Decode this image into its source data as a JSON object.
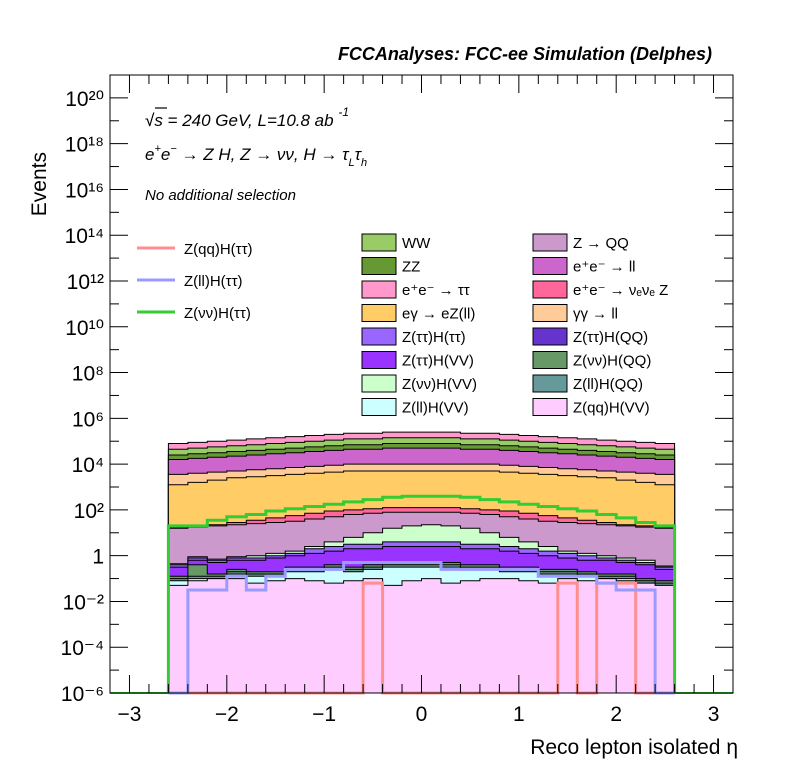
{
  "header": {
    "title": "FCCAnalyses: FCC-ee Simulation (Delphes)"
  },
  "annotations": {
    "energy": "√s = 240 GeV, L=10.8 ab",
    "energy_exp": "-1",
    "process": "e⁺e⁻ → Z H, Z → νν, H → τ_L τ_h",
    "selection": "No additional selection"
  },
  "legend_lines": [
    {
      "label": "Z(qq)H(ττ)",
      "color": "#ff8f8f"
    },
    {
      "label": "Z(ll)H(ττ)",
      "color": "#9a9aff"
    },
    {
      "label": "Z(νν)H(ττ)",
      "color": "#33cc33"
    }
  ],
  "legend_fills": [
    {
      "label": "WW",
      "color": "#99cc66"
    },
    {
      "label": "Z → QQ",
      "color": "#cc99cc"
    },
    {
      "label": "ZZ",
      "color": "#669933"
    },
    {
      "label": "e⁺e⁻ → ll",
      "color": "#cc66cc"
    },
    {
      "label": "e⁺e⁻ → ττ",
      "color": "#ff99cc"
    },
    {
      "label": "e⁺e⁻ → νₑνₑ Z",
      "color": "#ff6699"
    },
    {
      "label": "eγ → eZ(ll)",
      "color": "#ffcc66"
    },
    {
      "label": "γγ → ll",
      "color": "#ffcc99"
    },
    {
      "label": "Z(ττ)H(ττ)",
      "color": "#9966ff"
    },
    {
      "label": "Z(ττ)H(QQ)",
      "color": "#6633cc"
    },
    {
      "label": "Z(ττ)H(VV)",
      "color": "#9933ff"
    },
    {
      "label": "Z(νν)H(QQ)",
      "color": "#669966"
    },
    {
      "label": "Z(νν)H(VV)",
      "color": "#ccffcc"
    },
    {
      "label": "Z(ll)H(QQ)",
      "color": "#669999"
    },
    {
      "label": "Z(ll)H(VV)",
      "color": "#ccffff"
    },
    {
      "label": "Z(qq)H(VV)",
      "color": "#ffccff"
    }
  ],
  "chart_data": {
    "type": "area",
    "title": "FCCAnalyses: FCC-ee Simulation (Delphes)",
    "xlabel": "Reco lepton isolated η",
    "ylabel": "Events",
    "xlim": [
      -3.2,
      3.2
    ],
    "ylim_log10": [
      -6,
      21
    ],
    "yscale": "log",
    "xticks": [
      -3,
      -2,
      -1,
      0,
      1,
      2,
      3
    ],
    "xtick_labels": [
      "−3",
      "−2",
      "−1",
      "0",
      "1",
      "2",
      "3"
    ],
    "yticks_log10": [
      -6,
      -4,
      -2,
      0,
      2,
      4,
      6,
      8,
      10,
      12,
      14,
      16,
      18,
      20
    ],
    "ytick_labels": [
      "10⁻⁶",
      "10⁻⁴",
      "10⁻²",
      "1",
      "10²",
      "10⁴",
      "10⁶",
      "10⁸",
      "10¹⁰",
      "10¹²",
      "10¹⁴",
      "10¹⁶",
      "10¹⁸",
      "10²⁰"
    ],
    "bin_edges": [
      -2.6,
      -2.4,
      -2.2,
      -2.0,
      -1.8,
      -1.6,
      -1.4,
      -1.2,
      -1.0,
      -0.8,
      -0.6,
      -0.4,
      -0.2,
      0.0,
      0.2,
      0.4,
      0.6,
      0.8,
      1.0,
      1.2,
      1.4,
      1.6,
      1.8,
      2.0,
      2.2,
      2.4,
      2.6
    ],
    "stack_log10_edges": [
      {
        "name": "Z(qq)H(VV)",
        "color": "#ffccff",
        "y": [
          -1.3,
          -1.1,
          -1.0,
          -1.0,
          -1.2,
          -1.1,
          -1.0,
          -1.1,
          -1.2,
          -1.1,
          -1.0,
          -1.3,
          -1.1,
          -1.0,
          -1.2,
          -1.1,
          -1.0,
          -1.0,
          -1.1,
          -1.2,
          -1.0,
          -1.1,
          -1.0,
          -1.1,
          -1.2,
          -1.3
        ]
      },
      {
        "name": "Z(ll)H(VV)",
        "color": "#ccffff",
        "y": [
          -1.1,
          -1.0,
          -1.0,
          -0.8,
          -0.9,
          -0.9,
          -0.7,
          -0.7,
          -0.6,
          -0.7,
          -0.6,
          -0.5,
          -0.5,
          -0.5,
          -0.5,
          -0.6,
          -0.6,
          -0.7,
          -0.7,
          -0.8,
          -0.8,
          -0.9,
          -1.0,
          -1.0,
          -1.2,
          -1.3
        ]
      },
      {
        "name": "Z(ll)H(QQ)",
        "color": "#669999",
        "y": [
          -1.0,
          -0.9,
          -0.9,
          -0.7,
          -0.8,
          -0.8,
          -0.6,
          -0.6,
          -0.5,
          -0.6,
          -0.5,
          -0.4,
          -0.4,
          -0.4,
          -0.4,
          -0.5,
          -0.5,
          -0.6,
          -0.6,
          -0.7,
          -0.7,
          -0.8,
          -0.9,
          -0.9,
          -1.1,
          -1.2
        ]
      },
      {
        "name": "Z(νν)H(QQ)",
        "color": "#669966",
        "y": [
          -0.9,
          -0.4,
          -0.8,
          -0.6,
          -0.7,
          -0.7,
          -0.5,
          -0.5,
          -0.4,
          -0.5,
          -0.4,
          -0.3,
          -0.3,
          -0.3,
          -0.3,
          -0.4,
          -0.4,
          -0.5,
          -0.5,
          -0.6,
          -0.6,
          -0.7,
          -0.8,
          -0.8,
          -1.0,
          -1.1
        ]
      },
      {
        "name": "Z(ττ)H(VV)",
        "color": "#9933ff",
        "y": [
          -0.5,
          -0.2,
          -0.3,
          -0.2,
          -0.2,
          -0.1,
          0.0,
          0.1,
          0.2,
          0.3,
          0.3,
          0.4,
          0.4,
          0.4,
          0.4,
          0.3,
          0.3,
          0.2,
          0.1,
          0.0,
          -0.1,
          -0.2,
          -0.2,
          -0.3,
          -0.4,
          -0.6
        ]
      },
      {
        "name": "Z(ττ)H(ττ)",
        "color": "#9966ff",
        "y": [
          -0.4,
          -0.1,
          -0.2,
          -0.1,
          -0.1,
          0.0,
          0.1,
          0.3,
          0.4,
          0.5,
          0.5,
          0.6,
          0.6,
          0.6,
          0.6,
          0.5,
          0.5,
          0.4,
          0.3,
          0.2,
          0.1,
          0.0,
          -0.1,
          -0.2,
          -0.3,
          -0.5
        ]
      },
      {
        "name": "Z(νν)H(VV)",
        "color": "#ccffcc",
        "y": [
          -0.35,
          -0.05,
          -0.15,
          -0.05,
          0.0,
          0.1,
          0.2,
          0.4,
          0.6,
          0.8,
          1.0,
          1.2,
          1.3,
          1.35,
          1.3,
          1.2,
          1.0,
          0.8,
          0.6,
          0.4,
          0.2,
          0.1,
          0.0,
          -0.1,
          -0.2,
          -0.45
        ]
      },
      {
        "name": "Z → QQ",
        "color": "#cc99cc",
        "y": [
          1.2,
          1.25,
          1.3,
          1.35,
          1.4,
          1.45,
          1.5,
          1.6,
          1.7,
          1.8,
          1.85,
          1.9,
          1.9,
          1.9,
          1.9,
          1.85,
          1.8,
          1.7,
          1.6,
          1.5,
          1.45,
          1.4,
          1.35,
          1.3,
          1.25,
          1.2
        ]
      },
      {
        "name": "e⁺e⁻ → νₑνₑ Z",
        "color": "#ff6699",
        "y": [
          1.25,
          1.3,
          1.35,
          1.45,
          1.55,
          1.65,
          1.75,
          1.85,
          1.95,
          2.0,
          2.05,
          2.1,
          2.1,
          2.1,
          2.1,
          2.05,
          2.0,
          1.95,
          1.85,
          1.75,
          1.65,
          1.55,
          1.45,
          1.35,
          1.3,
          1.25
        ]
      },
      {
        "name": "eγ → eZ(ll)",
        "color": "#ffcc66",
        "y": [
          3.1,
          3.2,
          3.3,
          3.4,
          3.45,
          3.5,
          3.55,
          3.6,
          3.65,
          3.7,
          3.7,
          3.7,
          3.7,
          3.7,
          3.7,
          3.7,
          3.7,
          3.65,
          3.6,
          3.55,
          3.5,
          3.45,
          3.4,
          3.3,
          3.2,
          3.1
        ]
      },
      {
        "name": "γγ → ll",
        "color": "#ffcc99",
        "y": [
          3.55,
          3.6,
          3.65,
          3.7,
          3.75,
          3.8,
          3.85,
          3.9,
          3.95,
          4.0,
          4.0,
          4.0,
          4.0,
          4.0,
          4.0,
          4.0,
          4.0,
          3.95,
          3.9,
          3.85,
          3.8,
          3.75,
          3.7,
          3.65,
          3.6,
          3.55
        ]
      },
      {
        "name": "e⁺e⁻ → ll",
        "color": "#cc66cc",
        "y": [
          4.2,
          4.25,
          4.3,
          4.35,
          4.4,
          4.45,
          4.5,
          4.55,
          4.6,
          4.65,
          4.65,
          4.7,
          4.7,
          4.7,
          4.7,
          4.65,
          4.65,
          4.6,
          4.55,
          4.5,
          4.45,
          4.4,
          4.35,
          4.3,
          4.25,
          4.2
        ]
      },
      {
        "name": "ZZ",
        "color": "#669933",
        "y": [
          4.4,
          4.45,
          4.5,
          4.55,
          4.6,
          4.65,
          4.7,
          4.75,
          4.8,
          4.85,
          4.85,
          4.9,
          4.9,
          4.9,
          4.9,
          4.85,
          4.85,
          4.8,
          4.75,
          4.7,
          4.65,
          4.6,
          4.55,
          4.5,
          4.45,
          4.4
        ]
      },
      {
        "name": "WW",
        "color": "#99cc66",
        "y": [
          4.65,
          4.7,
          4.75,
          4.8,
          4.85,
          4.9,
          4.95,
          5.0,
          5.05,
          5.1,
          5.1,
          5.15,
          5.15,
          5.15,
          5.15,
          5.1,
          5.1,
          5.05,
          5.0,
          4.95,
          4.9,
          4.85,
          4.8,
          4.75,
          4.7,
          4.65
        ]
      },
      {
        "name": "e⁺e⁻ → ττ",
        "color": "#ff99cc",
        "y": [
          4.9,
          4.95,
          5.0,
          5.05,
          5.1,
          5.15,
          5.2,
          5.25,
          5.3,
          5.35,
          5.35,
          5.4,
          5.4,
          5.4,
          5.4,
          5.35,
          5.35,
          5.3,
          5.25,
          5.2,
          5.15,
          5.1,
          5.05,
          5.0,
          4.95,
          4.9
        ]
      }
    ],
    "stack_top_log10": [
      4.9,
      4.95,
      5.0,
      5.05,
      5.1,
      5.15,
      5.2,
      5.25,
      5.3,
      5.35,
      5.35,
      5.4,
      5.4,
      5.4,
      5.4,
      5.35,
      5.35,
      5.3,
      5.25,
      5.2,
      5.15,
      5.1,
      5.05,
      5.0,
      4.95,
      4.9
    ],
    "lines_log10": [
      {
        "name": "Z(qq)H(ττ)",
        "color": "#ff8f8f",
        "y": [
          -6,
          -6,
          -6,
          -6,
          -6,
          -6,
          -6,
          -6,
          -6,
          -6,
          -1.2,
          -6,
          -6,
          -6,
          -6,
          -6,
          -6,
          -6,
          -6,
          -6,
          -1.2,
          -6,
          -1.2,
          -1.2,
          -6,
          -6
        ]
      },
      {
        "name": "Z(ll)H(ττ)",
        "color": "#9a9aff",
        "y": [
          -6,
          -1.5,
          -1.5,
          -0.9,
          -1.5,
          -0.9,
          -0.6,
          -0.6,
          -0.6,
          -0.3,
          -0.3,
          -0.3,
          -0.3,
          -0.3,
          -0.6,
          -0.6,
          -0.6,
          -0.6,
          -0.6,
          -0.9,
          -0.9,
          -0.9,
          -1.2,
          -1.5,
          -1.5,
          -6
        ]
      },
      {
        "name": "Z(νν)H(ττ)",
        "color": "#33cc33",
        "y": [
          1.3,
          1.3,
          1.55,
          1.7,
          1.8,
          1.95,
          2.05,
          2.15,
          2.25,
          2.35,
          2.45,
          2.55,
          2.6,
          2.6,
          2.6,
          2.55,
          2.45,
          2.35,
          2.25,
          2.15,
          2.05,
          1.95,
          1.8,
          1.65,
          1.45,
          1.3
        ]
      }
    ],
    "legend_placement": "top-right",
    "grid": false
  }
}
